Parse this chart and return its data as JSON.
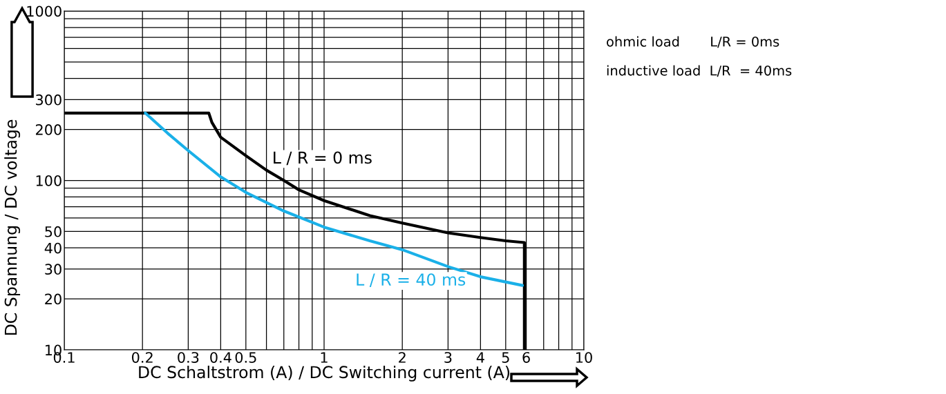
{
  "chart_data": {
    "type": "line",
    "xlabel": "DC Schaltstrom (A) / DC Switching current (A)",
    "ylabel": "DC Spannung / DC voltage",
    "log": "xy",
    "grid": true,
    "legend": false,
    "marker": "none",
    "line_style": "solid",
    "xlim": [
      0.1,
      10
    ],
    "xticks": [
      0.1,
      0.2,
      0.3,
      0.4,
      0.5,
      {
        "value": 0.6,
        "label": null
      },
      {
        "value": 0.7,
        "label": null
      },
      {
        "value": 0.8,
        "label": null
      },
      {
        "value": 0.9,
        "label": null
      },
      1,
      2,
      3,
      4,
      5,
      6,
      {
        "value": 7,
        "label": null
      },
      {
        "value": 8,
        "label": null
      },
      {
        "value": 9,
        "label": null
      },
      10
    ],
    "ylim": [
      10,
      1000
    ],
    "yticks": [
      10,
      20,
      30,
      40,
      50,
      {
        "value": 60,
        "label": null
      },
      {
        "value": 70,
        "label": null
      },
      {
        "value": 80,
        "label": null
      },
      {
        "value": 90,
        "label": null
      },
      100,
      200,
      300,
      {
        "value": 400,
        "label": null
      },
      {
        "value": 500,
        "label": null
      },
      {
        "value": 600,
        "label": null
      },
      {
        "value": 700,
        "label": null
      },
      {
        "value": 800,
        "label": null
      },
      {
        "value": 900,
        "label": null
      },
      1000
    ],
    "series": [
      {
        "name": "L / R = 0 ms",
        "color": "#000000",
        "x": [
          0.1,
          0.36,
          0.37,
          0.4,
          0.5,
          0.6,
          0.7,
          0.8,
          1,
          1.5,
          2,
          3,
          4,
          5,
          5.9,
          5.9
        ],
        "values": [
          250,
          250,
          220,
          180,
          140,
          115,
          100,
          88,
          76,
          62,
          56,
          49,
          46,
          44,
          43,
          10
        ]
      },
      {
        "name": "L / R = 40 ms",
        "color": "#1ab0e8",
        "x": [
          0.205,
          0.25,
          0.3,
          0.4,
          0.5,
          0.7,
          1,
          1.5,
          2,
          3,
          4,
          5.8
        ],
        "values": [
          250,
          190,
          150,
          105,
          85,
          66,
          53,
          44,
          39,
          31,
          27,
          24
        ]
      }
    ],
    "annotations": [
      "ohmic load       L/R = 0ms",
      "inductive load  L/R  = 40ms"
    ]
  }
}
